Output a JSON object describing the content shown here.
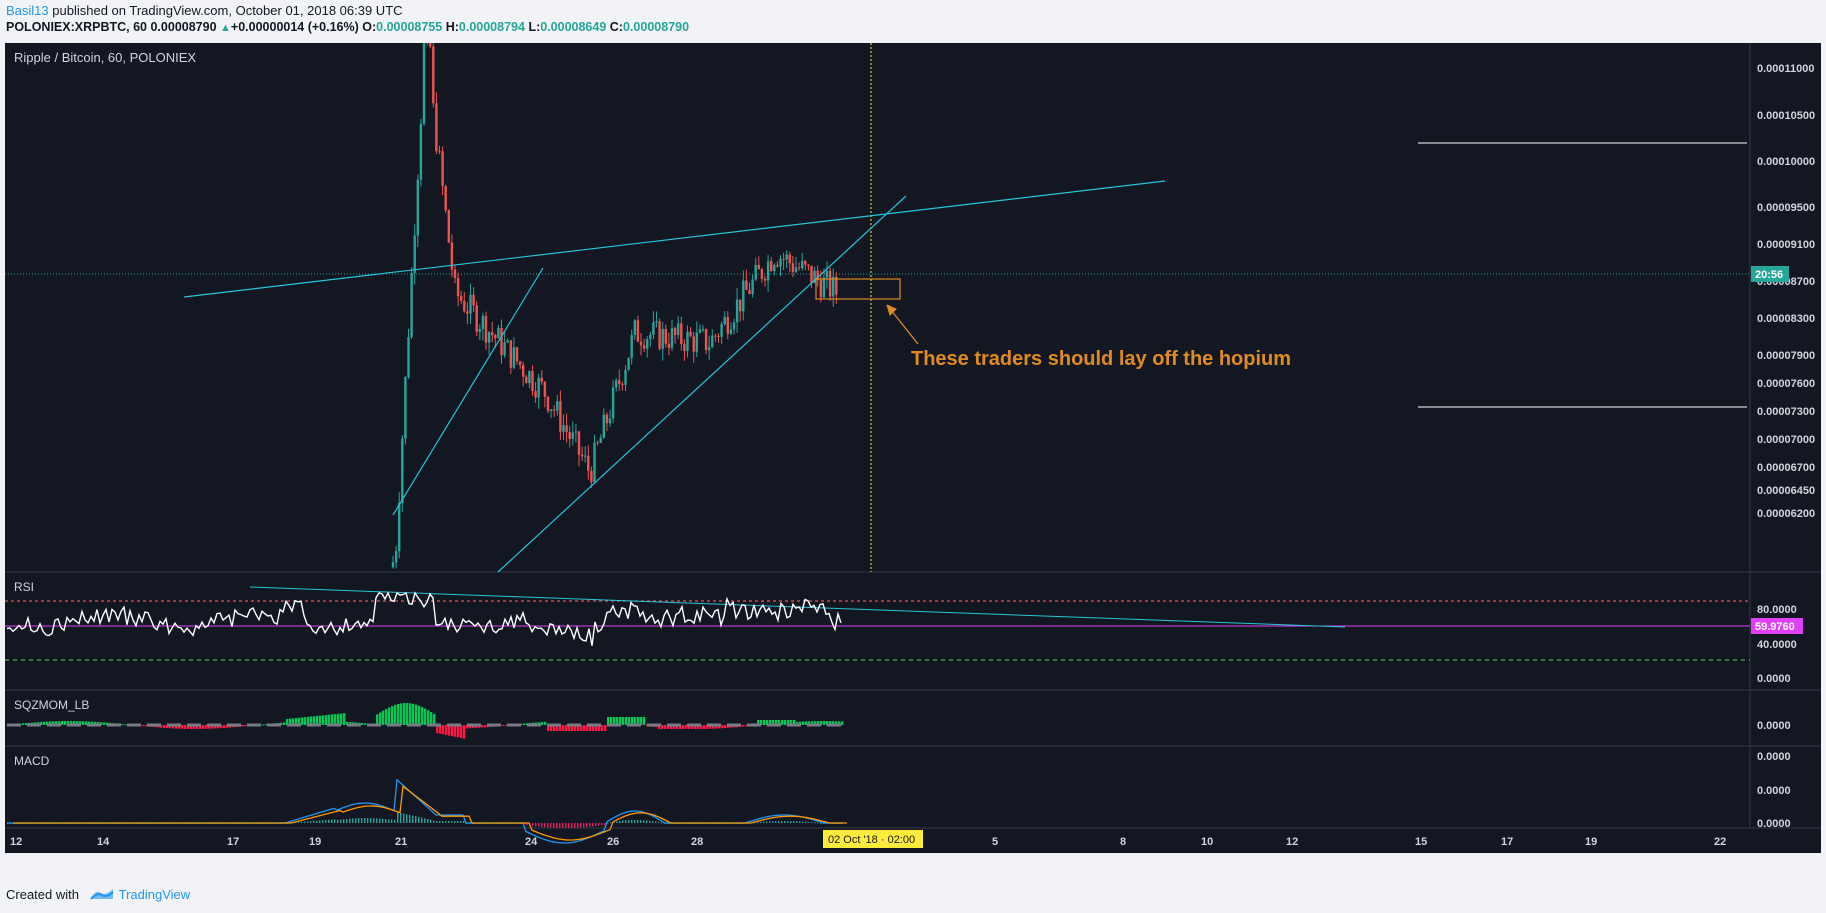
{
  "header": {
    "publisher": "Basil13",
    "published_text": "published on TradingView.com, October 01, 2018 06:39 UTC",
    "symbol": "POLONIEX:XRPBTC, 60",
    "last": "0.00008790",
    "change": "+0.00000014 (+0.16%)",
    "o_label": "O:",
    "o_value": "0.00008755",
    "h_label": "H:",
    "h_value": "0.00008794",
    "l_label": "L:",
    "l_value": "0.00008649",
    "c_label": "C:",
    "c_value": "0.00008790"
  },
  "footer": {
    "created_with": "Created with",
    "brand": "TradingView"
  },
  "colors": {
    "background": "#131722",
    "up": "#26a69a",
    "down": "#ef5350",
    "trendline": "#26c6da",
    "annotation": "#e08b1e",
    "rsi_line": "#ffffff",
    "rsi_upper": "#ef5350",
    "rsi_lower": "#4caf50",
    "rsi_mid": "#e040fb",
    "macd_line": "#2196f3",
    "signal_line": "#ff9800",
    "vline": "#ffeb3b"
  },
  "chart_data": [
    {
      "type": "candlestick",
      "title": "Ripple / Bitcoin, 60, POLONIEX",
      "ylim": [
        6e-05,
        0.000113
      ],
      "y_ticks": [
        "0.00011000",
        "0.00010500",
        "0.00010000",
        "0.00009500",
        "0.00009100",
        "0.00008700",
        "0.00008300",
        "0.00007900",
        "0.00007600",
        "0.00007300",
        "0.00007000",
        "0.00006700",
        "0.00006450",
        "0.00006200"
      ],
      "last_price_time_label": "20:56",
      "x_ticks": [
        "12",
        "14",
        "17",
        "19",
        "21",
        "24",
        "26",
        "28",
        "5",
        "8",
        "10",
        "12",
        "15",
        "17",
        "19",
        "22"
      ],
      "cursor_label": "02 Oct '18 · 02:00",
      "key_points": [
        {
          "date": "Sep 20",
          "price": 6.1e-05
        },
        {
          "date": "Sep 21",
          "price": 0.000113
        },
        {
          "date": "Sep 22",
          "price": 8.8e-05
        },
        {
          "date": "Sep 24",
          "price": 7.8e-05
        },
        {
          "date": "Sep 25",
          "price": 7e-05
        },
        {
          "date": "Sep 26",
          "price": 8.4e-05
        },
        {
          "date": "Sep 28",
          "price": 8.3e-05
        },
        {
          "date": "Sep 29",
          "price": 9.2e-05
        },
        {
          "date": "Oct 01",
          "price": 8.79e-05
        }
      ],
      "annotation": "These traders should lay off the hopium"
    },
    {
      "type": "line",
      "name": "RSI",
      "y_ticks": [
        "80.0000",
        "40.0000",
        "0.0000"
      ],
      "current_value": "59.9760",
      "upper_band": 80,
      "lower_band": 20,
      "mid_line": 60
    },
    {
      "type": "bar",
      "name": "SQZMOM_LB",
      "y_ticks": [
        "0.0000"
      ]
    },
    {
      "type": "line",
      "name": "MACD",
      "y_ticks": [
        "0.0000",
        "0.0000",
        "0.0000"
      ]
    }
  ]
}
